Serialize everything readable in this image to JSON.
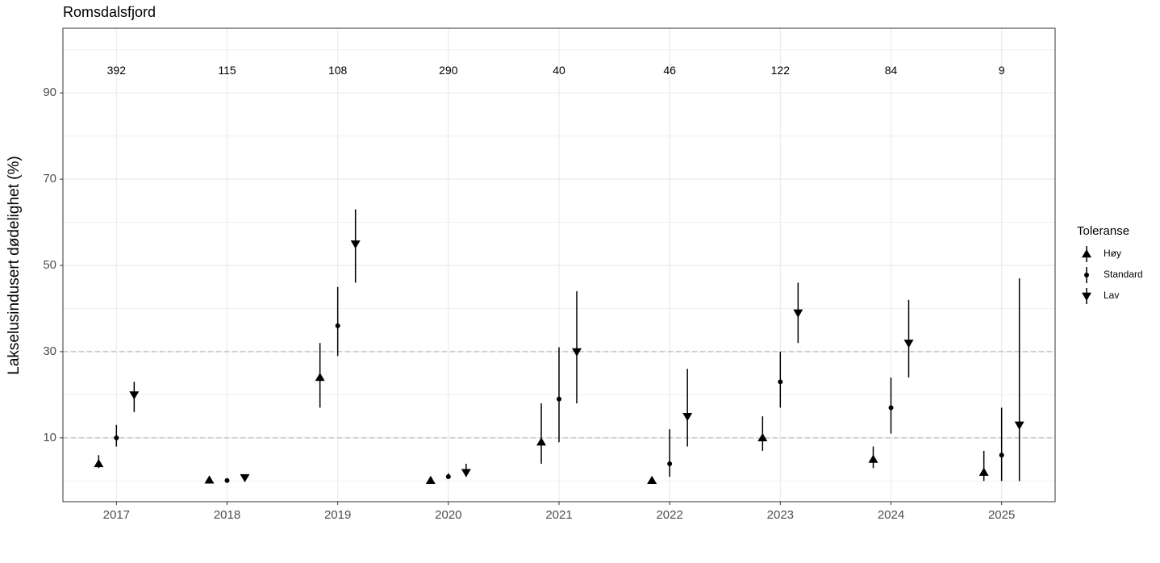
{
  "chart_data": {
    "type": "pointrange",
    "title": "Romsdalsfjord",
    "y_label": "Lakselusindusert dødelighet (%)",
    "categories": [
      "2017",
      "2018",
      "2019",
      "2020",
      "2021",
      "2022",
      "2023",
      "2024",
      "2025"
    ],
    "count_labels": [
      "392",
      "115",
      "108",
      "290",
      "40",
      "46",
      "122",
      "84",
      "9"
    ],
    "legend_title": "Toleranse",
    "series": [
      {
        "name": "Høy",
        "shape": "triangle-up",
        "color": "#000000",
        "values": [
          4,
          0.2,
          24,
          0.1,
          9,
          0.1,
          10,
          5,
          2
        ],
        "lower": [
          3,
          0,
          17,
          0,
          4,
          0,
          7,
          3,
          0
        ],
        "upper": [
          6,
          0.4,
          32,
          0.3,
          18,
          0.3,
          15,
          8,
          7
        ]
      },
      {
        "name": "Standard",
        "shape": "circle",
        "color": "#000000",
        "values": [
          10,
          0.1,
          36,
          1,
          19,
          4,
          23,
          17,
          6
        ],
        "lower": [
          8,
          0,
          29,
          0.5,
          9,
          1,
          17,
          11,
          0
        ],
        "upper": [
          13,
          0.3,
          45,
          1.8,
          31,
          12,
          30,
          24,
          17
        ]
      },
      {
        "name": "Lav",
        "shape": "triangle-down",
        "color": "#000000",
        "values": [
          20,
          0.8,
          55,
          2,
          30,
          15,
          39,
          32,
          13
        ],
        "lower": [
          16,
          0.4,
          46,
          1,
          18,
          8,
          32,
          24,
          0
        ],
        "upper": [
          23,
          1.4,
          63,
          4,
          44,
          26,
          46,
          42,
          47
        ]
      }
    ],
    "ylim": [
      -4.8,
      105
    ],
    "yticks": [
      10,
      30,
      50,
      70,
      90
    ],
    "minor_yticks": [
      0,
      20,
      40,
      60,
      80,
      100
    ],
    "count_label_y": 95,
    "hlines": [
      10,
      30
    ],
    "grid": true
  }
}
